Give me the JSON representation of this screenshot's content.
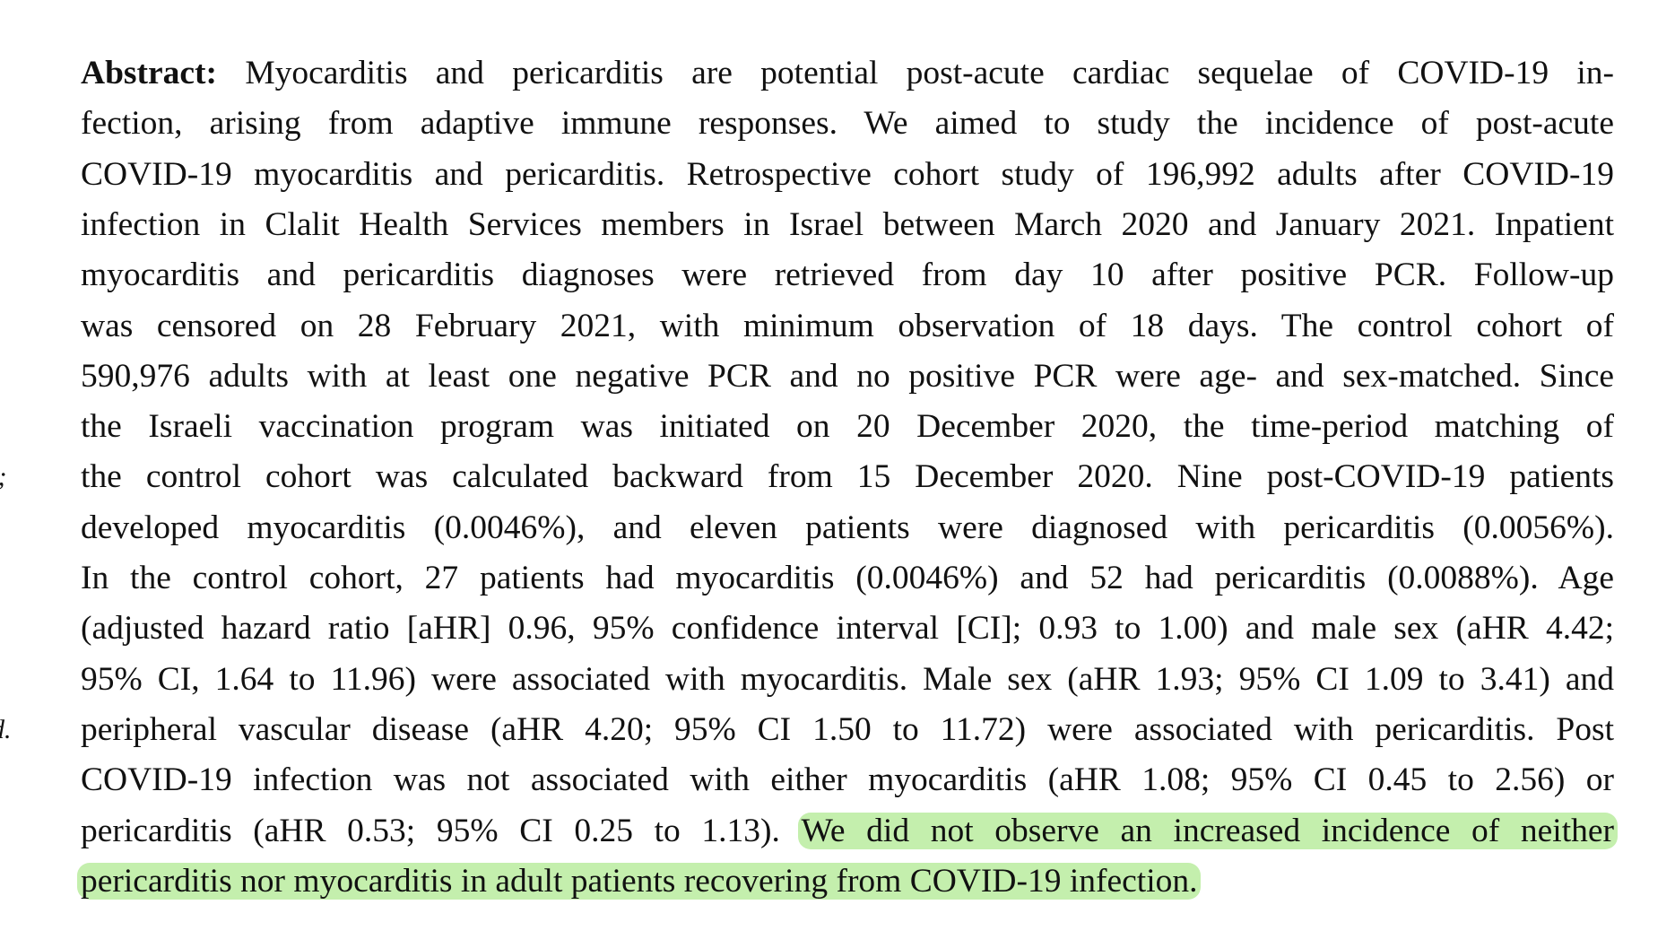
{
  "margin_notes": [
    ".;",
    "d."
  ],
  "abstract": {
    "label": "Abstract:",
    "lines": [
      {
        "text": "Myocarditis and pericarditis are potential post-acute cardiac sequelae of COVID-19 in-"
      },
      {
        "text": "fection, arising from adaptive immune responses. We aimed to study the incidence of post-acute"
      },
      {
        "text": "COVID-19 myocarditis and pericarditis. Retrospective cohort study of 196,992 adults after COVID-19"
      },
      {
        "text": "infection in Clalit Health Services members in Israel between March 2020 and January 2021. Inpatient"
      },
      {
        "text": "myocarditis and pericarditis diagnoses were retrieved from day 10 after positive PCR. Follow-up"
      },
      {
        "text": "was censored on 28 February 2021, with minimum observation of 18 days. The control cohort of"
      },
      {
        "text": "590,976 adults with at least one negative PCR and no positive PCR were age- and sex-matched. Since"
      },
      {
        "text": "the Israeli vaccination program was initiated on 20 December 2020, the time-period matching of"
      },
      {
        "text": "the control cohort was calculated backward from 15 December 2020. Nine post-COVID-19 patients"
      },
      {
        "text": "developed myocarditis (0.0046%), and eleven patients were diagnosed with pericarditis (0.0056%)."
      },
      {
        "text": "In the control cohort, 27 patients had myocarditis (0.0046%) and 52 had pericarditis (0.0088%). Age"
      },
      {
        "text": "(adjusted hazard ratio [aHR] 0.96, 95% confidence interval [CI]; 0.93 to 1.00) and male sex (aHR 4.42;"
      },
      {
        "text": "95% CI, 1.64 to 11.96) were associated with myocarditis. Male sex (aHR 1.93; 95% CI 1.09 to 3.41) and"
      },
      {
        "text": "peripheral vascular disease (aHR 4.20; 95% CI 1.50 to 11.72) were associated with pericarditis. Post"
      },
      {
        "text": "COVID-19 infection was not associated with either myocarditis (aHR 1.08; 95% CI 0.45 to 2.56) or"
      },
      {
        "text": "pericarditis (aHR 0.53; 95% CI 0.25 to 1.13).",
        "highlight": "We did not observe an increased incidence of neither"
      },
      {
        "highlight": "pericarditis nor myocarditis in adult patients recovering from COVID-19 infection."
      }
    ]
  }
}
